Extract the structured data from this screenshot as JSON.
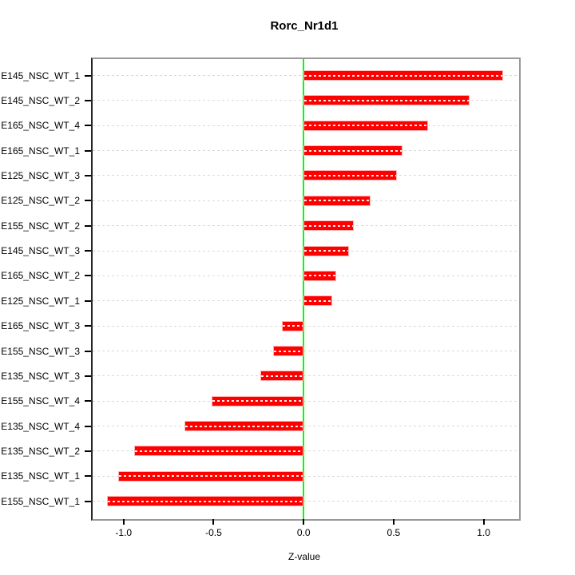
{
  "chart_data": {
    "type": "bar",
    "orientation": "horizontal",
    "title": "Rorc_Nr1d1",
    "xlabel": "Z-value",
    "ylabel": "",
    "categories": [
      "E145_NSC_WT_1",
      "E145_NSC_WT_2",
      "E165_NSC_WT_4",
      "E165_NSC_WT_1",
      "E125_NSC_WT_3",
      "E125_NSC_WT_2",
      "E155_NSC_WT_2",
      "E145_NSC_WT_3",
      "E165_NSC_WT_2",
      "E125_NSC_WT_1",
      "E165_NSC_WT_3",
      "E155_NSC_WT_3",
      "E135_NSC_WT_3",
      "E155_NSC_WT_4",
      "E135_NSC_WT_4",
      "E135_NSC_WT_2",
      "E135_NSC_WT_1",
      "E155_NSC_WT_1"
    ],
    "values": [
      1.11,
      0.92,
      0.69,
      0.55,
      0.52,
      0.37,
      0.28,
      0.25,
      0.18,
      0.16,
      -0.12,
      -0.17,
      -0.24,
      -0.51,
      -0.66,
      -0.94,
      -1.03,
      -1.09
    ],
    "xlim": [
      -1.172,
      1.197
    ],
    "x_ticks": [
      -1.0,
      -0.5,
      0.0,
      0.5,
      1.0
    ],
    "x_tick_labels": [
      "-1.0",
      "-0.5",
      "0.0",
      "0.5",
      "1.0"
    ],
    "grid": true,
    "legend": "none",
    "zero_line": 0.0,
    "colors": {
      "bar": "#ff0000",
      "bar_border": "#ffb3b3",
      "zero_line": "#00ff00",
      "grid": "#d9d9d9",
      "box": "#999999",
      "axis": "#000000",
      "background": "#ffffff"
    }
  }
}
